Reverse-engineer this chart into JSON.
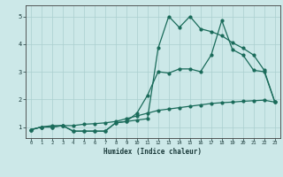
{
  "xlabel": "Humidex (Indice chaleur)",
  "xlim": [
    -0.5,
    23.5
  ],
  "ylim": [
    0.6,
    5.4
  ],
  "xticks": [
    0,
    1,
    2,
    3,
    4,
    5,
    6,
    7,
    8,
    9,
    10,
    11,
    12,
    13,
    14,
    15,
    16,
    17,
    18,
    19,
    20,
    21,
    22,
    23
  ],
  "yticks": [
    1,
    2,
    3,
    4,
    5
  ],
  "bg_color": "#cce8e8",
  "grid_color": "#aacfcf",
  "line_color": "#1a6b5a",
  "line1_x": [
    0,
    1,
    2,
    3,
    4,
    5,
    6,
    7,
    8,
    9,
    10,
    11,
    12,
    13,
    14,
    15,
    16,
    17,
    18,
    19,
    20,
    21,
    22,
    23
  ],
  "line1_y": [
    0.9,
    1.0,
    1.0,
    1.05,
    0.85,
    0.85,
    0.85,
    0.85,
    1.15,
    1.2,
    1.25,
    1.3,
    3.85,
    5.0,
    4.6,
    5.0,
    4.55,
    4.45,
    4.3,
    4.05,
    3.85,
    3.6,
    3.05,
    1.9
  ],
  "line2_x": [
    0,
    1,
    2,
    3,
    4,
    5,
    6,
    7,
    8,
    9,
    10,
    11,
    12,
    13,
    14,
    15,
    16,
    17,
    18,
    19,
    20,
    21,
    22,
    23
  ],
  "line2_y": [
    0.9,
    1.0,
    1.0,
    1.05,
    0.85,
    0.85,
    0.85,
    0.85,
    1.15,
    1.2,
    1.5,
    2.15,
    3.0,
    2.95,
    3.1,
    3.1,
    3.0,
    3.6,
    4.85,
    3.8,
    3.6,
    3.05,
    3.0,
    1.9
  ],
  "line3_x": [
    0,
    1,
    2,
    3,
    4,
    5,
    6,
    7,
    8,
    9,
    10,
    11,
    12,
    13,
    14,
    15,
    16,
    17,
    18,
    19,
    20,
    21,
    22,
    23
  ],
  "line3_y": [
    0.9,
    1.0,
    1.05,
    1.05,
    1.05,
    1.1,
    1.12,
    1.15,
    1.2,
    1.3,
    1.4,
    1.5,
    1.6,
    1.65,
    1.7,
    1.75,
    1.8,
    1.85,
    1.88,
    1.9,
    1.93,
    1.95,
    1.97,
    1.9
  ]
}
